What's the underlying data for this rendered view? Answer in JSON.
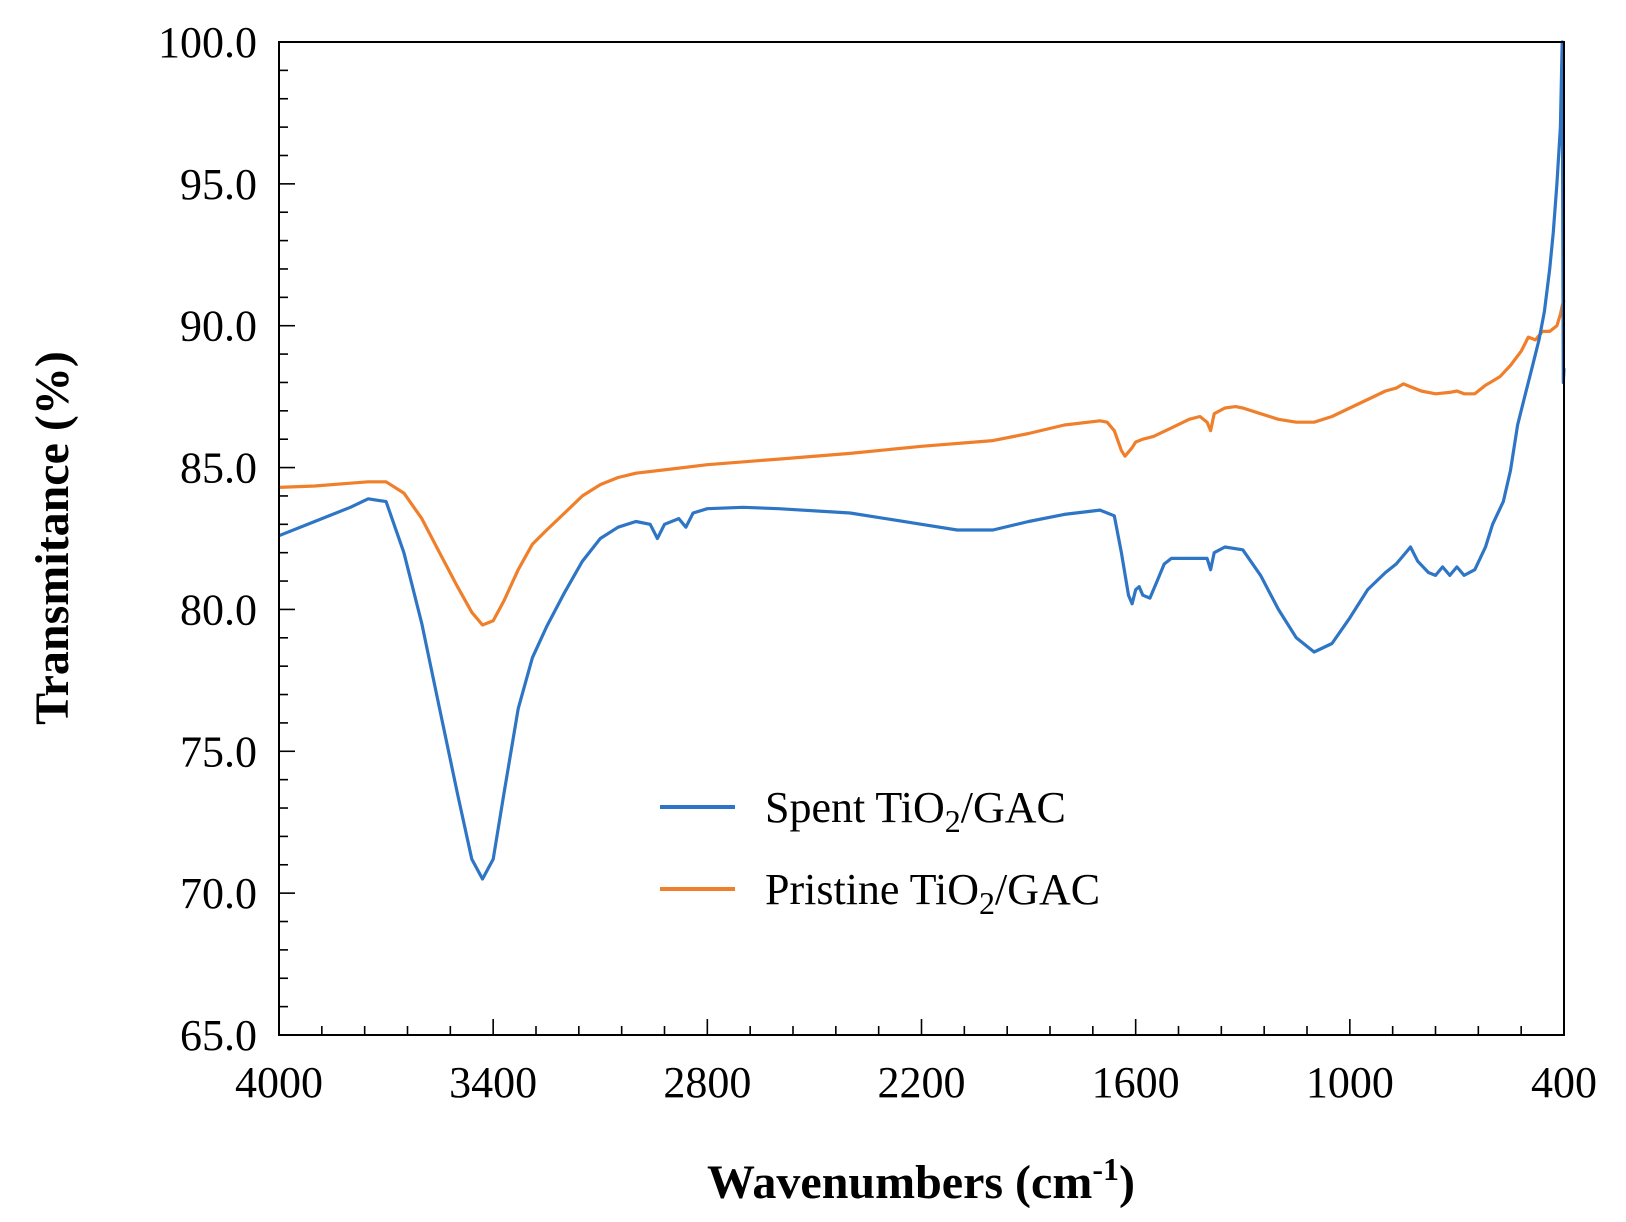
{
  "chart_data": {
    "type": "line",
    "xlabel": "Wavenumbers (cm",
    "xlabel_sup": "-1",
    "xlabel_close": ")",
    "ylabel": "Transmitance (%)",
    "xlim": [
      4000,
      400
    ],
    "ylim": [
      65,
      100
    ],
    "x_ticks": [
      4000,
      3400,
      2800,
      2200,
      1600,
      1000,
      400
    ],
    "x_tick_labels": [
      "4000",
      "3400",
      "2800",
      "2200",
      "1600",
      "1000",
      "400"
    ],
    "y_ticks": [
      65,
      70,
      75,
      80,
      85,
      90,
      95,
      100
    ],
    "y_tick_labels": [
      "65.0",
      "70.0",
      "75.0",
      "80.0",
      "85.0",
      "90.0",
      "95.0",
      "100.0"
    ],
    "x_minor_step": 120,
    "y_minor_step": 1,
    "legend_position": "center",
    "series": [
      {
        "name": "Spent TiO2/GAC",
        "label_pre": "Spent TiO",
        "label_sub": "2",
        "label_post": "/GAC",
        "color": "#2E75C6",
        "points": [
          [
            4000,
            82.6
          ],
          [
            3900,
            83.1
          ],
          [
            3800,
            83.6
          ],
          [
            3750,
            83.9
          ],
          [
            3700,
            83.8
          ],
          [
            3650,
            82.0
          ],
          [
            3600,
            79.5
          ],
          [
            3550,
            76.5
          ],
          [
            3500,
            73.5
          ],
          [
            3460,
            71.2
          ],
          [
            3430,
            70.5
          ],
          [
            3400,
            71.2
          ],
          [
            3370,
            73.5
          ],
          [
            3330,
            76.5
          ],
          [
            3290,
            78.3
          ],
          [
            3250,
            79.4
          ],
          [
            3200,
            80.6
          ],
          [
            3150,
            81.7
          ],
          [
            3100,
            82.5
          ],
          [
            3050,
            82.9
          ],
          [
            3000,
            83.1
          ],
          [
            2960,
            83.0
          ],
          [
            2940,
            82.5
          ],
          [
            2920,
            83.0
          ],
          [
            2880,
            83.2
          ],
          [
            2860,
            82.9
          ],
          [
            2840,
            83.4
          ],
          [
            2800,
            83.55
          ],
          [
            2700,
            83.6
          ],
          [
            2600,
            83.55
          ],
          [
            2400,
            83.4
          ],
          [
            2200,
            83.0
          ],
          [
            2100,
            82.8
          ],
          [
            2000,
            82.8
          ],
          [
            1900,
            83.1
          ],
          [
            1800,
            83.35
          ],
          [
            1700,
            83.5
          ],
          [
            1660,
            83.3
          ],
          [
            1640,
            82.0
          ],
          [
            1620,
            80.5
          ],
          [
            1610,
            80.2
          ],
          [
            1600,
            80.7
          ],
          [
            1590,
            80.8
          ],
          [
            1580,
            80.5
          ],
          [
            1560,
            80.4
          ],
          [
            1540,
            81.0
          ],
          [
            1520,
            81.6
          ],
          [
            1500,
            81.8
          ],
          [
            1450,
            81.8
          ],
          [
            1400,
            81.8
          ],
          [
            1390,
            81.4
          ],
          [
            1380,
            82.0
          ],
          [
            1350,
            82.2
          ],
          [
            1300,
            82.1
          ],
          [
            1250,
            81.2
          ],
          [
            1200,
            80.0
          ],
          [
            1150,
            79.0
          ],
          [
            1100,
            78.5
          ],
          [
            1050,
            78.8
          ],
          [
            1000,
            79.7
          ],
          [
            950,
            80.7
          ],
          [
            900,
            81.3
          ],
          [
            870,
            81.6
          ],
          [
            850,
            81.9
          ],
          [
            830,
            82.2
          ],
          [
            810,
            81.7
          ],
          [
            780,
            81.3
          ],
          [
            760,
            81.2
          ],
          [
            740,
            81.5
          ],
          [
            720,
            81.2
          ],
          [
            700,
            81.5
          ],
          [
            680,
            81.2
          ],
          [
            650,
            81.4
          ],
          [
            620,
            82.2
          ],
          [
            600,
            83.0
          ],
          [
            570,
            83.8
          ],
          [
            550,
            84.9
          ],
          [
            530,
            86.5
          ],
          [
            510,
            87.5
          ],
          [
            490,
            88.5
          ],
          [
            470,
            89.5
          ],
          [
            455,
            90.5
          ],
          [
            440,
            92.0
          ],
          [
            430,
            93.3
          ],
          [
            420,
            95.0
          ],
          [
            410,
            97.0
          ],
          [
            405,
            100.0
          ],
          [
            402,
            88.0
          ],
          [
            400,
            88.5
          ]
        ]
      },
      {
        "name": "Pristine TiO2/GAC",
        "label_pre": "Pristine TiO",
        "label_sub": "2",
        "label_post": "/GAC",
        "color": "#F07F2B",
        "points": [
          [
            4000,
            84.3
          ],
          [
            3900,
            84.35
          ],
          [
            3800,
            84.45
          ],
          [
            3750,
            84.5
          ],
          [
            3700,
            84.5
          ],
          [
            3650,
            84.1
          ],
          [
            3600,
            83.2
          ],
          [
            3550,
            82.0
          ],
          [
            3500,
            80.8
          ],
          [
            3460,
            79.9
          ],
          [
            3430,
            79.45
          ],
          [
            3400,
            79.6
          ],
          [
            3370,
            80.3
          ],
          [
            3330,
            81.4
          ],
          [
            3290,
            82.3
          ],
          [
            3250,
            82.8
          ],
          [
            3200,
            83.4
          ],
          [
            3150,
            84.0
          ],
          [
            3100,
            84.4
          ],
          [
            3050,
            84.65
          ],
          [
            3000,
            84.8
          ],
          [
            2900,
            84.95
          ],
          [
            2800,
            85.1
          ],
          [
            2600,
            85.3
          ],
          [
            2400,
            85.5
          ],
          [
            2200,
            85.75
          ],
          [
            2000,
            85.95
          ],
          [
            1900,
            86.2
          ],
          [
            1800,
            86.5
          ],
          [
            1700,
            86.65
          ],
          [
            1680,
            86.6
          ],
          [
            1660,
            86.3
          ],
          [
            1640,
            85.6
          ],
          [
            1630,
            85.4
          ],
          [
            1610,
            85.7
          ],
          [
            1600,
            85.9
          ],
          [
            1580,
            86.0
          ],
          [
            1550,
            86.1
          ],
          [
            1500,
            86.4
          ],
          [
            1450,
            86.7
          ],
          [
            1420,
            86.8
          ],
          [
            1400,
            86.6
          ],
          [
            1390,
            86.3
          ],
          [
            1380,
            86.9
          ],
          [
            1350,
            87.1
          ],
          [
            1320,
            87.15
          ],
          [
            1300,
            87.1
          ],
          [
            1250,
            86.9
          ],
          [
            1200,
            86.7
          ],
          [
            1150,
            86.6
          ],
          [
            1100,
            86.6
          ],
          [
            1050,
            86.8
          ],
          [
            1000,
            87.1
          ],
          [
            950,
            87.4
          ],
          [
            900,
            87.7
          ],
          [
            870,
            87.8
          ],
          [
            850,
            87.95
          ],
          [
            830,
            87.85
          ],
          [
            800,
            87.7
          ],
          [
            760,
            87.6
          ],
          [
            720,
            87.65
          ],
          [
            700,
            87.7
          ],
          [
            680,
            87.6
          ],
          [
            650,
            87.6
          ],
          [
            620,
            87.9
          ],
          [
            580,
            88.2
          ],
          [
            550,
            88.6
          ],
          [
            520,
            89.1
          ],
          [
            500,
            89.6
          ],
          [
            480,
            89.5
          ],
          [
            460,
            89.8
          ],
          [
            440,
            89.8
          ],
          [
            420,
            90.0
          ],
          [
            410,
            90.4
          ],
          [
            405,
            90.7
          ],
          [
            400,
            90.9
          ]
        ]
      }
    ]
  }
}
